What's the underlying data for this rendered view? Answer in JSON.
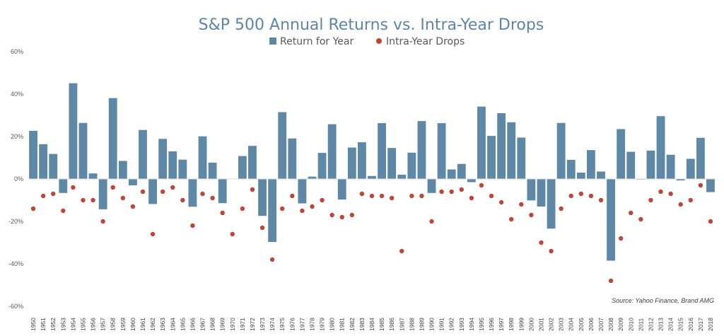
{
  "chart_data": {
    "type": "bar",
    "title": "S&P 500 Annual Returns vs. Intra-Year Drops",
    "source": "Source: Yahoo Finance, Brand AMG",
    "xlabel": "",
    "ylabel": "",
    "ylim": [
      -60,
      60
    ],
    "yticks": [
      60,
      40,
      20,
      0,
      -20,
      -40,
      -60
    ],
    "ytick_labels": [
      "60%",
      "40%",
      "20%",
      "0%",
      "-20%",
      "-40%",
      "-60%"
    ],
    "grid": false,
    "legend_position": "top-center",
    "categories": [
      "1950",
      "1951",
      "1952",
      "1953",
      "1954",
      "1955",
      "1956",
      "1957",
      "1958",
      "1959",
      "1960",
      "1961",
      "1962",
      "1963",
      "1964",
      "1965",
      "1966",
      "1967",
      "1968",
      "1969",
      "1970",
      "1971",
      "1972",
      "1973",
      "1974",
      "1975",
      "1976",
      "1977",
      "1978",
      "1979",
      "1980",
      "1981",
      "1982",
      "1983",
      "1984",
      "1985",
      "1986",
      "1987",
      "1988",
      "1989",
      "1990",
      "1991",
      "1992",
      "1993",
      "1994",
      "1995",
      "1996",
      "1997",
      "1998",
      "1999",
      "2000",
      "2001",
      "2002",
      "2003",
      "2004",
      "2005",
      "2006",
      "2007",
      "2008",
      "2009",
      "2010",
      "2011",
      "2012",
      "2013",
      "2014",
      "2015",
      "2016",
      "2017",
      "2018"
    ],
    "series": [
      {
        "name": "Return for Year",
        "kind": "bar",
        "color": "#5f88a7",
        "values": [
          22.7,
          16.4,
          11.8,
          -6.6,
          45.1,
          26.4,
          2.6,
          -14.3,
          38.1,
          8.5,
          -3.0,
          23.1,
          -11.8,
          18.9,
          13.0,
          9.1,
          -13.1,
          20.1,
          7.7,
          -11.4,
          0.1,
          10.8,
          15.6,
          -17.4,
          -29.7,
          31.5,
          19.1,
          -11.5,
          1.1,
          12.3,
          25.8,
          -9.7,
          14.8,
          17.3,
          1.4,
          26.3,
          14.6,
          2.0,
          12.4,
          27.3,
          -6.6,
          26.3,
          4.5,
          7.1,
          -1.5,
          34.1,
          20.3,
          31.0,
          26.7,
          19.5,
          -10.1,
          -13.0,
          -23.4,
          26.4,
          9.0,
          3.0,
          13.6,
          3.5,
          -38.5,
          23.5,
          12.8,
          0.0,
          13.4,
          29.6,
          11.4,
          -0.7,
          9.5,
          19.4,
          -6.2
        ]
      },
      {
        "name": "Intra-Year Drops",
        "kind": "scatter",
        "color": "#b9473a",
        "values": [
          -14,
          -8,
          -7,
          -15,
          -4,
          -10,
          -10,
          -20,
          -4,
          -9,
          -13,
          -6,
          -26,
          -6,
          -4,
          -10,
          -22,
          -7,
          -9,
          -16,
          -26,
          -14,
          -5,
          -23,
          -38,
          -14,
          -8,
          -15,
          -13,
          -10,
          -17,
          -18,
          -17,
          -7,
          -8,
          -8,
          -9,
          -34,
          -8,
          -8,
          -20,
          -6,
          -6,
          -5,
          -9,
          -3,
          -8,
          -11,
          -19,
          -12,
          -17,
          -30,
          -34,
          -14,
          -8,
          -7,
          -8,
          -10,
          -48,
          -28,
          -16,
          -19,
          -10,
          -6,
          -7,
          -12,
          -10,
          -3,
          -20
        ]
      }
    ]
  }
}
